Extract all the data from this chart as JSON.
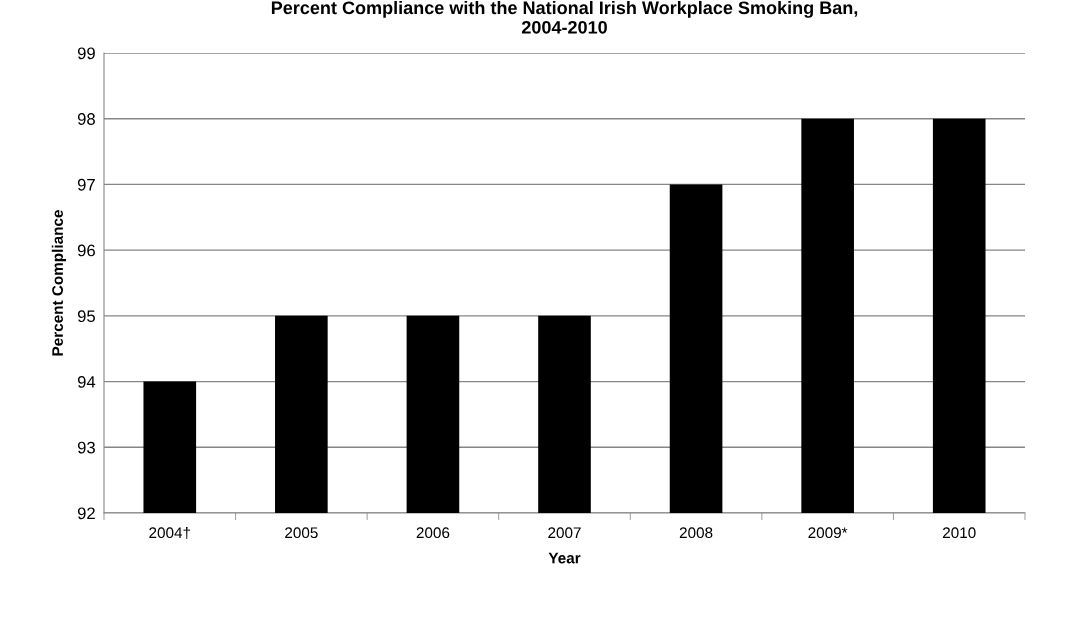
{
  "chart_data": {
    "type": "bar",
    "title": "Percent Compliance with the National Irish Workplace Smoking Ban,\n2004-2010",
    "xlabel": "Year",
    "ylabel": "Percent Compliance",
    "categories": [
      "2004†",
      "2005",
      "2006",
      "2007",
      "2008",
      "2009*",
      "2010"
    ],
    "values": [
      94,
      95,
      95,
      95,
      97,
      98,
      98
    ],
    "color": "#000000",
    "ylim": [
      92,
      99
    ],
    "yticks": [
      92,
      93,
      94,
      95,
      96,
      97,
      98,
      99
    ],
    "grid": "y",
    "legend": false
  }
}
